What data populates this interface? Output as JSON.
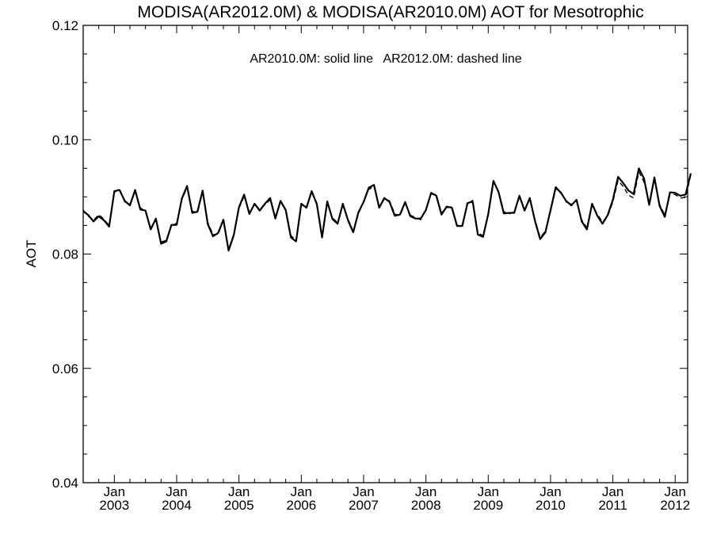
{
  "chart_data": {
    "type": "line",
    "title": "MODISA(AR2012.0M) & MODISA(AR2010.0M)  AOT for Mesotrophic",
    "annotation": "AR2010.0M: solid line   AR2012.0M: dashed line",
    "ylabel": "AOT",
    "xlabel": "",
    "ylim": [
      0.04,
      0.12
    ],
    "xlim": [
      2002.5,
      2012.2
    ],
    "y_ticks": [
      "0.04",
      "0.06",
      "0.08",
      "0.10",
      "0.12"
    ],
    "x_ticks": [
      {
        "top": "Jan",
        "bottom": "2003"
      },
      {
        "top": "Jan",
        "bottom": "2004"
      },
      {
        "top": "Jan",
        "bottom": "2005"
      },
      {
        "top": "Jan",
        "bottom": "2006"
      },
      {
        "top": "Jan",
        "bottom": "2007"
      },
      {
        "top": "Jan",
        "bottom": "2008"
      },
      {
        "top": "Jan",
        "bottom": "2009"
      },
      {
        "top": "Jan",
        "bottom": "2010"
      },
      {
        "top": "Jan",
        "bottom": "2011"
      },
      {
        "top": "Jan",
        "bottom": "2012"
      }
    ],
    "x_start": "2002-07",
    "x_step": "1 month",
    "series": [
      {
        "name": "AR2010.0M",
        "style": "solid",
        "color": "#000000",
        "values": [
          0.0875,
          0.0868,
          0.0857,
          0.0866,
          0.0859,
          0.0848,
          0.091,
          0.0912,
          0.0893,
          0.0885,
          0.0912,
          0.0878,
          0.0876,
          0.0843,
          0.0862,
          0.0818,
          0.0822,
          0.0851,
          0.0851,
          0.0897,
          0.0919,
          0.0872,
          0.0874,
          0.0911,
          0.0852,
          0.0831,
          0.0837,
          0.086,
          0.0806,
          0.0833,
          0.0882,
          0.0904,
          0.087,
          0.0888,
          0.0876,
          0.0888,
          0.0898,
          0.0862,
          0.0893,
          0.0877,
          0.0829,
          0.0822,
          0.0888,
          0.0881,
          0.091,
          0.0887,
          0.0829,
          0.0892,
          0.0861,
          0.0853,
          0.0888,
          0.0859,
          0.0838,
          0.0873,
          0.0891,
          0.0916,
          0.0921,
          0.0881,
          0.0898,
          0.0891,
          0.0867,
          0.0869,
          0.0891,
          0.0866,
          0.0862,
          0.0862,
          0.0877,
          0.0907,
          0.0902,
          0.0869,
          0.0883,
          0.0881,
          0.0849,
          0.0849,
          0.0889,
          0.0892,
          0.0834,
          0.083,
          0.087,
          0.0928,
          0.0908,
          0.0871,
          0.0872,
          0.0872,
          0.0902,
          0.0876,
          0.0898,
          0.0858,
          0.0826,
          0.0838,
          0.0877,
          0.0917,
          0.0907,
          0.0893,
          0.0885,
          0.0895,
          0.0857,
          0.0843,
          0.0888,
          0.0867,
          0.0853,
          0.0868,
          0.0895,
          0.0935,
          0.0924,
          0.0911,
          0.0905,
          0.095,
          0.0932,
          0.0886,
          0.0934,
          0.0884,
          0.0865,
          0.0908,
          0.0907,
          0.0902,
          0.0904,
          0.0941
        ]
      },
      {
        "name": "AR2012.0M",
        "style": "dashed",
        "color": "#000000",
        "values": [
          0.0877,
          0.0866,
          0.0859,
          0.0869,
          0.0861,
          0.085,
          0.0908,
          0.0914,
          0.0891,
          0.0887,
          0.0909,
          0.0881,
          0.0874,
          0.0846,
          0.0859,
          0.0821,
          0.0824,
          0.0849,
          0.0854,
          0.0895,
          0.0916,
          0.0875,
          0.0872,
          0.0908,
          0.0855,
          0.0834,
          0.0835,
          0.0862,
          0.0808,
          0.0835,
          0.088,
          0.0901,
          0.0873,
          0.0886,
          0.0879,
          0.0886,
          0.0895,
          0.0865,
          0.089,
          0.0879,
          0.0832,
          0.0824,
          0.0885,
          0.0883,
          0.0908,
          0.0889,
          0.0832,
          0.0889,
          0.0863,
          0.0855,
          0.0885,
          0.0861,
          0.084,
          0.087,
          0.0893,
          0.0913,
          0.0918,
          0.0884,
          0.0896,
          0.0893,
          0.087,
          0.0867,
          0.0889,
          0.0868,
          0.0864,
          0.086,
          0.0879,
          0.0905,
          0.0904,
          0.0872,
          0.0881,
          0.0883,
          0.0851,
          0.0847,
          0.0887,
          0.0894,
          0.0837,
          0.0832,
          0.0867,
          0.0925,
          0.091,
          0.0874,
          0.087,
          0.0874,
          0.0899,
          0.0878,
          0.0896,
          0.086,
          0.0829,
          0.084,
          0.0874,
          0.0914,
          0.0909,
          0.0891,
          0.0887,
          0.0892,
          0.086,
          0.0846,
          0.0885,
          0.087,
          0.0856,
          0.0866,
          0.0891,
          0.0929,
          0.0918,
          0.0903,
          0.0898,
          0.0944,
          0.0926,
          0.0889,
          0.0929,
          0.0887,
          0.0868,
          0.0905,
          0.0904,
          0.0898,
          0.0899,
          0.0938
        ]
      }
    ]
  }
}
